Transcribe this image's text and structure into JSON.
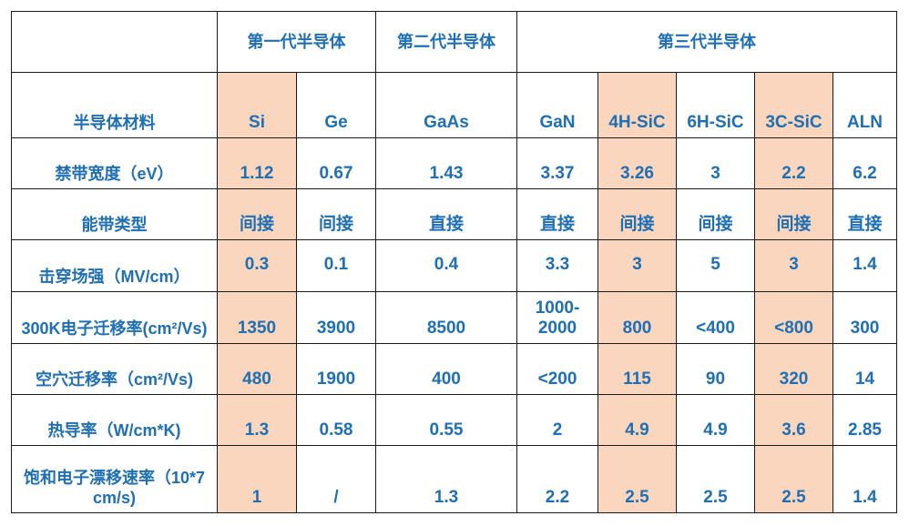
{
  "generations": [
    "第一代半导体",
    "第二代半导体",
    "第三代半导体"
  ],
  "materials_label": "半导体材料",
  "materials": [
    "Si",
    "Ge",
    "GaAs",
    "GaN",
    "4H-SiC",
    "6H-SiC",
    "3C-SiC",
    "ALN"
  ],
  "highlight_columns": [
    "Si",
    "4H-SiC",
    "3C-SiC"
  ],
  "highlight_color": "#f9d6bd",
  "text_color": "#1f6fb4",
  "rows": [
    {
      "label": "禁带宽度（eV）",
      "values": [
        "1.12",
        "0.67",
        "1.43",
        "3.37",
        "3.26",
        "3",
        "2.2",
        "6.2"
      ]
    },
    {
      "label": "能带类型",
      "values": [
        "间接",
        "间接",
        "直接",
        "直接",
        "间接",
        "间接",
        "间接",
        "直接"
      ]
    },
    {
      "label": "击穿场强（MV/cm）",
      "values": [
        "0.3",
        "0.1",
        "0.4",
        "3.3",
        "3",
        "5",
        "3",
        "1.4"
      ]
    },
    {
      "label": "300K电子迁移率(cm²/Vs)",
      "values": [
        "1350",
        "3900",
        "8500",
        "1000-2000",
        "800",
        "<400",
        "<800",
        "300"
      ]
    },
    {
      "label": "空穴迁移率（cm²/Vs)",
      "values": [
        "480",
        "1900",
        "400",
        "<200",
        "115",
        "90",
        "320",
        "14"
      ]
    },
    {
      "label": "热导率（W/cm*K)",
      "values": [
        "1.3",
        "0.58",
        "0.55",
        "2",
        "4.9",
        "4.9",
        "3.6",
        "2.85"
      ]
    },
    {
      "label": "饱和电子漂移速率（10*7 cm/s)",
      "values": [
        "1",
        "/",
        "1.3",
        "2.2",
        "2.5",
        "2.5",
        "2.5",
        "1.4"
      ]
    }
  ]
}
